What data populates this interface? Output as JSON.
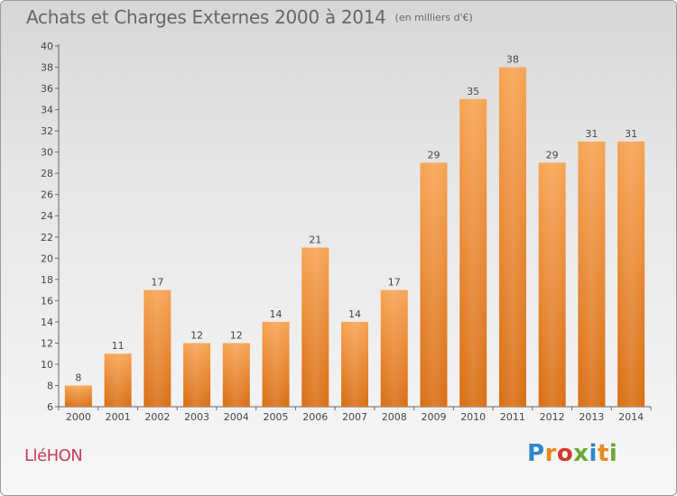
{
  "header": {
    "title": "Achats et Charges Externes 2000 à 2014",
    "subtitle": "(en milliers d'€)"
  },
  "footer": {
    "commune": "LléHON",
    "logo_letters": [
      "P",
      "r",
      "o",
      "x",
      "i",
      "t",
      "i"
    ],
    "logo_colors": [
      "#2f87c8",
      "#e38a1c",
      "#d4372a",
      "#6aa83a",
      "#2f87c8",
      "#e38a1c",
      "#6aa83a"
    ]
  },
  "chart_data": {
    "type": "bar",
    "title": "Achats et Charges Externes 2000 à 2014",
    "subtitle": "(en milliers d'€)",
    "categories": [
      "2000",
      "2001",
      "2002",
      "2003",
      "2004",
      "2005",
      "2006",
      "2007",
      "2008",
      "2009",
      "2010",
      "2011",
      "2012",
      "2013",
      "2014"
    ],
    "values": [
      8,
      11,
      17,
      12,
      12,
      14,
      21,
      14,
      17,
      29,
      35,
      38,
      29,
      31,
      31
    ],
    "ylim": [
      6,
      40
    ],
    "yticks": [
      6,
      8,
      10,
      12,
      14,
      16,
      18,
      20,
      22,
      24,
      26,
      28,
      30,
      32,
      34,
      36,
      38,
      40
    ],
    "grid": false,
    "bar_color": "#f0903a"
  }
}
